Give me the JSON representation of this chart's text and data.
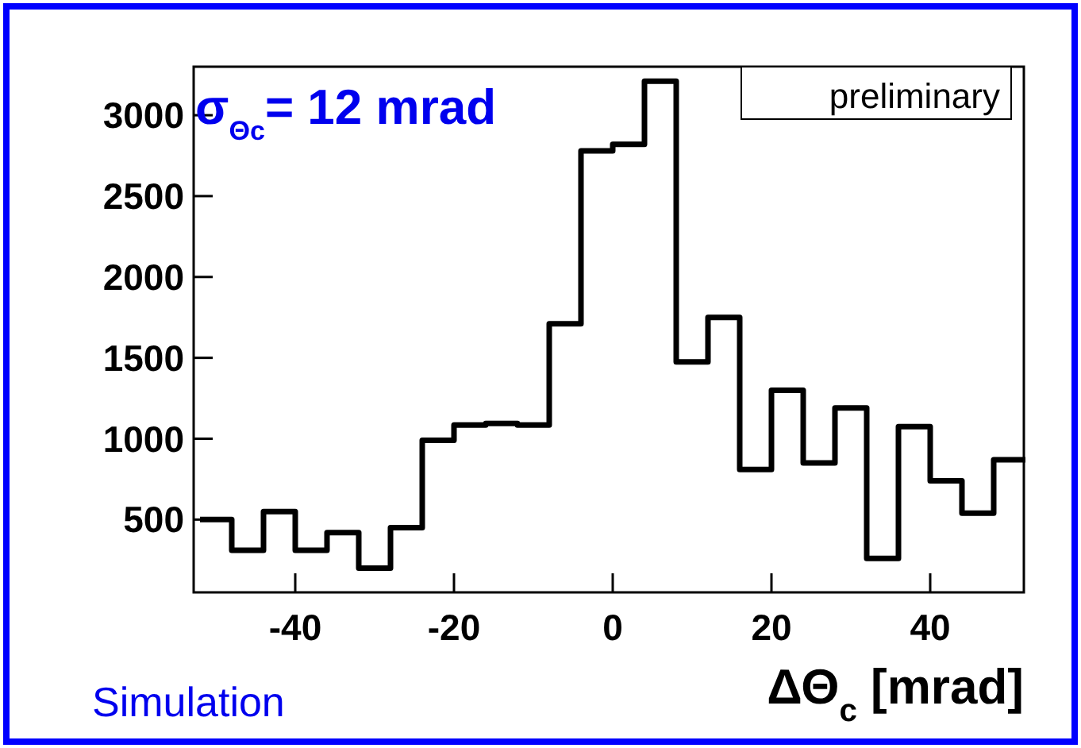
{
  "chart_data": {
    "type": "histogram",
    "xlabel": "ΔΘ$_{c}$ [mrad]",
    "bins": [
      -52,
      -48,
      -44,
      -40,
      -36,
      -32,
      -28,
      -24,
      -20,
      -16,
      -12,
      -8,
      -4,
      0,
      4,
      8,
      12,
      16,
      20,
      24,
      28,
      32,
      36,
      40,
      44,
      48,
      52
    ],
    "values": [
      500,
      310,
      550,
      310,
      420,
      200,
      450,
      990,
      1085,
      1095,
      1085,
      1710,
      2780,
      2820,
      3210,
      1475,
      1750,
      810,
      1300,
      850,
      1190,
      260,
      1075,
      740,
      540,
      870
    ],
    "color": "#000000",
    "xlim": [
      -52.8,
      51.8
    ],
    "xticks": [
      -40,
      -20,
      0,
      20,
      40
    ],
    "ylim": [
      50,
      3300
    ],
    "yticks": [
      500,
      1000,
      1500,
      2000,
      2500,
      3000
    ],
    "grid": false,
    "annotations": [
      "σ$_{Θc}$= 12 mrad",
      "preliminary",
      "Simulation"
    ]
  }
}
